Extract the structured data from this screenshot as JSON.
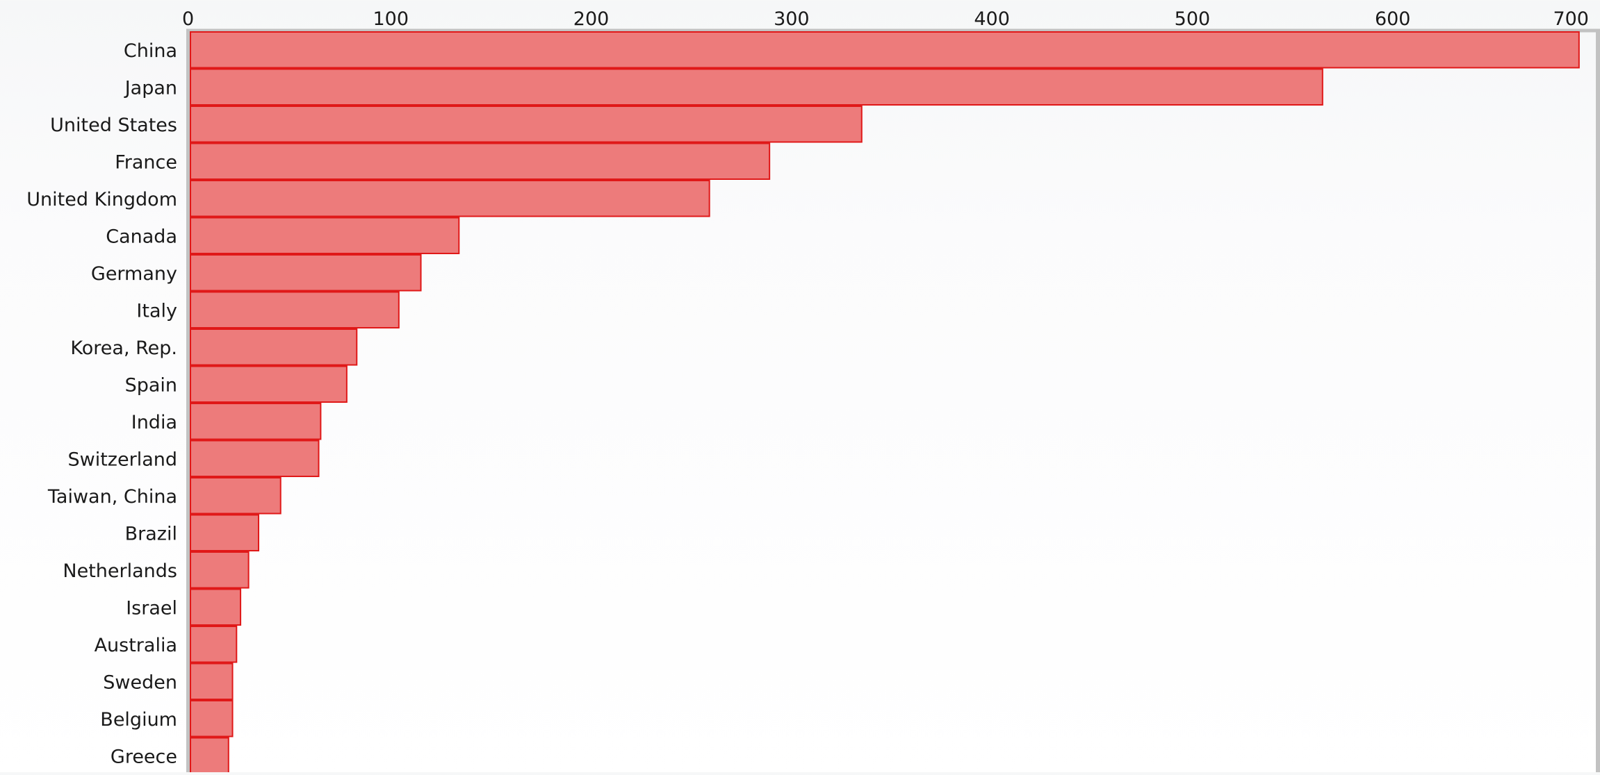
{
  "chart_data": {
    "type": "bar",
    "orientation": "horizontal",
    "title": "",
    "xlabel": "",
    "ylabel": "",
    "xlim": [
      0,
      700
    ],
    "x_ticks": [
      0,
      100,
      200,
      300,
      400,
      500,
      600,
      700
    ],
    "x_tick_labels": [
      "0",
      "100",
      "200",
      "300",
      "400",
      "500",
      "600",
      "700"
    ],
    "x_axis_position": "top",
    "grid": false,
    "legend": "none",
    "categories": [
      "China",
      "Japan",
      "United States",
      "France",
      "United Kingdom",
      "Canada",
      "Germany",
      "Italy",
      "Korea, Rep.",
      "Spain",
      "India",
      "Switzerland",
      "Taiwan, China",
      "Brazil",
      "Netherlands",
      "Israel",
      "Australia",
      "Sweden",
      "Belgium",
      "Greece"
    ],
    "values": [
      693,
      565,
      335,
      289,
      259,
      134,
      115,
      104,
      83,
      78,
      65,
      64,
      45,
      34,
      29,
      25,
      23,
      21,
      21,
      19
    ],
    "colors": {
      "bar_fill": "#ed7b7b",
      "bar_stroke": "#e01818",
      "frame": "#c2c2c2",
      "text": "#1a1a1a"
    }
  }
}
